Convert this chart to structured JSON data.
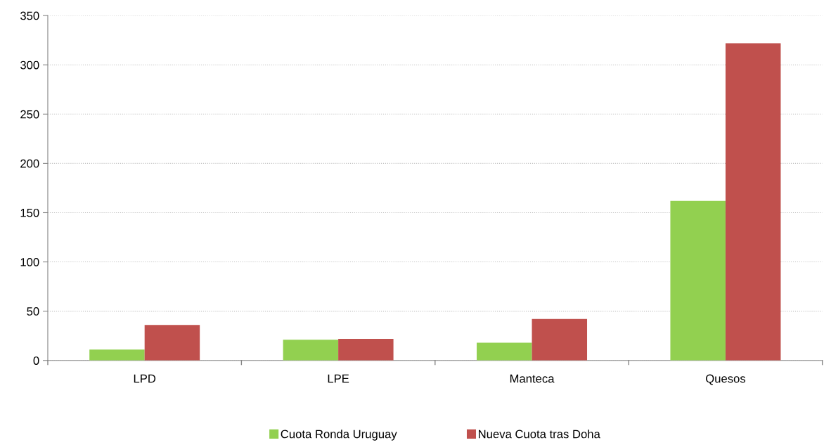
{
  "chart_data": {
    "type": "bar",
    "categories": [
      "LPD",
      "LPE",
      "Manteca",
      "Quesos"
    ],
    "series": [
      {
        "name": "Cuota Ronda Uruguay",
        "color": "#92d050",
        "values": [
          11,
          21,
          18,
          162
        ]
      },
      {
        "name": "Nueva Cuota tras Doha",
        "color": "#c0504d",
        "values": [
          36,
          22,
          42,
          322
        ]
      }
    ],
    "ylim": [
      0,
      350
    ],
    "yticks": [
      0,
      50,
      100,
      150,
      200,
      250,
      300,
      350
    ],
    "grid": "y",
    "legend": "bottom"
  }
}
